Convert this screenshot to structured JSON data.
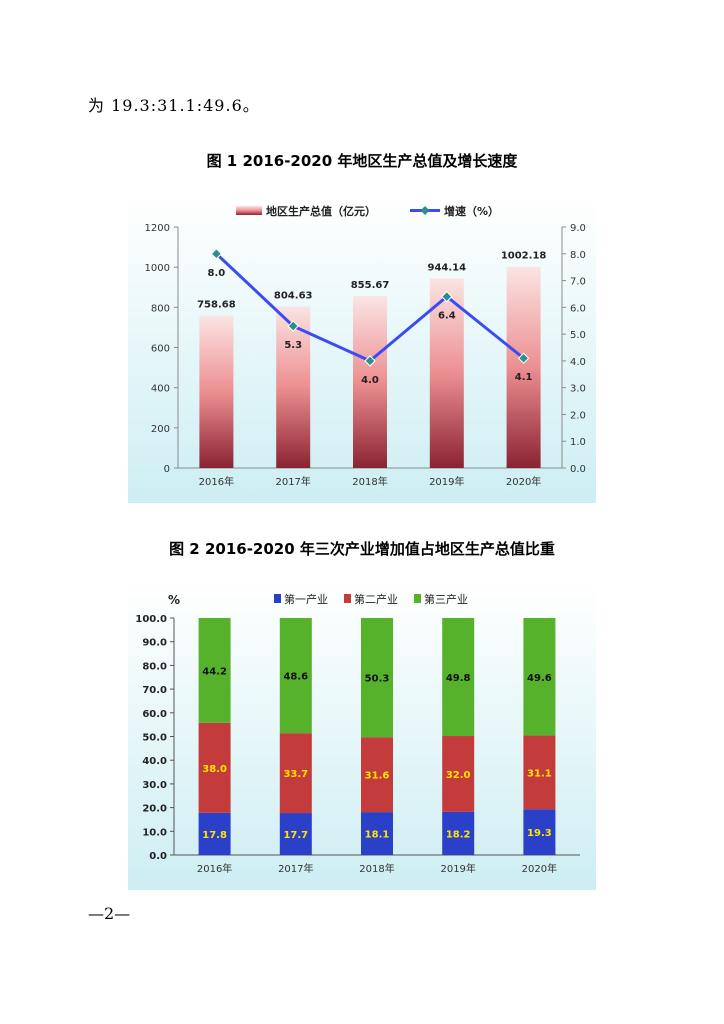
{
  "intro_text": "为 19.3:31.1:49.6。",
  "figure1": {
    "title": "图 1  2016-2020 年地区生产总值及增长速度"
  },
  "figure2": {
    "title": "图 2  2016-2020 年三次产业增加值占地区生产总值比重"
  },
  "page_number": "—2—",
  "colors": {
    "chart_bg_top": "#ffffff",
    "chart_bg_bottom": "#cdeef3",
    "gdp_bar_top": "#fbe4e4",
    "gdp_bar_bottom": "#8a2333",
    "growth_line": "#3b4cf0",
    "growth_marker": "#2e8f8a",
    "primary": "#2a40c8",
    "secondary": "#c43b3b",
    "tertiary": "#57b22b",
    "label_yellow": "#ffe400"
  },
  "chart_data": [
    {
      "type": "bar",
      "categories": [
        "2016年",
        "2017年",
        "2018年",
        "2019年",
        "2020年"
      ],
      "series": [
        {
          "name": "地区生产总值（亿元）",
          "type": "bar",
          "axis": "left",
          "values": [
            758.68,
            804.63,
            855.67,
            944.14,
            1002.18
          ],
          "labels": [
            "758.68",
            "804.63",
            "855.67",
            "944.14",
            "1002.18"
          ]
        },
        {
          "name": "增速（%）",
          "type": "line",
          "axis": "right",
          "values": [
            8.0,
            5.3,
            4.0,
            6.4,
            4.1
          ],
          "labels": [
            "8.0",
            "5.3",
            "4.0",
            "6.4",
            "4.1"
          ]
        }
      ],
      "ylim": [
        0,
        1200
      ],
      "y_ticks": [
        "0",
        "200",
        "400",
        "600",
        "800",
        "1000",
        "1200"
      ],
      "y2lim": [
        0,
        9
      ],
      "y2_ticks": [
        "0.0",
        "1.0",
        "2.0",
        "3.0",
        "4.0",
        "5.0",
        "6.0",
        "7.0",
        "8.0",
        "9.0"
      ],
      "legend_position": "top-center"
    },
    {
      "type": "bar",
      "stacked": true,
      "categories": [
        "2016年",
        "2017年",
        "2018年",
        "2019年",
        "2020年"
      ],
      "series": [
        {
          "name": "第一产业",
          "values": [
            17.8,
            17.7,
            18.1,
            18.2,
            19.3
          ],
          "labels": [
            "17.8",
            "17.7",
            "18.1",
            "18.2",
            "19.3"
          ]
        },
        {
          "name": "第二产业",
          "values": [
            38.0,
            33.7,
            31.6,
            32.0,
            31.1
          ],
          "labels": [
            "38.0",
            "33.7",
            "31.6",
            "32.0",
            "31.1"
          ]
        },
        {
          "name": "第三产业",
          "values": [
            44.2,
            48.6,
            50.3,
            49.8,
            49.6
          ],
          "labels": [
            "44.2",
            "48.6",
            "50.3",
            "49.8",
            "49.6"
          ]
        }
      ],
      "ylabel": "%",
      "ylim": [
        0,
        100
      ],
      "y_ticks": [
        "0.0",
        "10.0",
        "20.0",
        "30.0",
        "40.0",
        "50.0",
        "60.0",
        "70.0",
        "80.0",
        "90.0",
        "100.0"
      ],
      "legend_position": "top-center"
    }
  ]
}
